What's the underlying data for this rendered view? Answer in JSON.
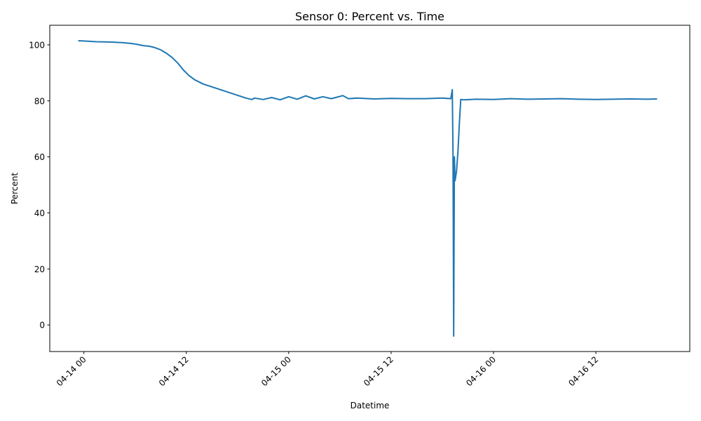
{
  "chart_data": {
    "type": "line",
    "title": "Sensor 0: Percent vs. Time",
    "xlabel": "Datetime",
    "ylabel": "Percent",
    "x_ticks": [
      "04-14 00",
      "04-14 12",
      "04-15 00",
      "04-15 12",
      "04-16 00",
      "04-16 12"
    ],
    "y_ticks": [
      "0",
      "20",
      "40",
      "60",
      "80",
      "100"
    ],
    "xlim": [
      "04-13 20:00",
      "04-16 23:00"
    ],
    "ylim": [
      -9.5,
      107
    ],
    "grid": false,
    "line_color": "#1f77b4",
    "series": [
      {
        "x": [
          "04-13 23:20",
          "04-14 00:30",
          "04-14 01:30",
          "04-14 03:00",
          "04-14 04:30",
          "04-14 05:30",
          "04-14 06:00",
          "04-14 06:30",
          "04-14 07:00",
          "04-14 07:40",
          "04-14 08:20",
          "04-14 09:00",
          "04-14 09:40",
          "04-14 10:20",
          "04-14 11:00",
          "04-14 11:40",
          "04-14 12:20",
          "04-14 13:00",
          "04-14 14:00",
          "04-14 15:00",
          "04-14 16:00",
          "04-14 17:00",
          "04-14 18:00",
          "04-14 19:00",
          "04-14 19:40",
          "04-14 20:00",
          "04-14 21:00",
          "04-14 22:00",
          "04-14 23:00",
          "04-15 00:00",
          "04-15 01:00",
          "04-15 02:00",
          "04-15 03:00",
          "04-15 04:00",
          "04-15 05:00",
          "04-15 06:00",
          "04-15 06:20",
          "04-15 07:00",
          "04-15 08:00",
          "04-15 10:00",
          "04-15 12:00",
          "04-15 14:00",
          "04-15 16:00",
          "04-15 18:00",
          "04-15 19:00",
          "04-15 19:10",
          "04-15 19:15",
          "04-15 19:20",
          "04-15 19:25",
          "04-15 19:30",
          "04-15 19:40",
          "04-15 19:50",
          "04-15 20:00",
          "04-15 20:10",
          "04-15 20:30",
          "04-15 22:00",
          "04-16 00:00",
          "04-16 02:00",
          "04-16 04:00",
          "04-16 06:00",
          "04-16 08:00",
          "04-16 10:00",
          "04-16 12:00",
          "04-16 14:00",
          "04-16 16:00",
          "04-16 18:00",
          "04-16 19:10"
        ],
        "y": [
          101.5,
          101.3,
          101.1,
          101.0,
          100.8,
          100.5,
          100.3,
          100.0,
          99.7,
          99.5,
          99.0,
          98.2,
          97.0,
          95.5,
          93.5,
          91.0,
          89.0,
          87.5,
          86.0,
          85.0,
          84.0,
          83.0,
          82.0,
          81.0,
          80.5,
          81.0,
          80.5,
          81.2,
          80.4,
          81.5,
          80.6,
          81.8,
          80.7,
          81.5,
          80.8,
          81.6,
          81.9,
          80.8,
          81.0,
          80.7,
          80.9,
          80.8,
          80.8,
          81.0,
          80.8,
          84.0,
          62.0,
          -4.0,
          60.0,
          51.5,
          55.0,
          62.0,
          72.0,
          80.5,
          80.4,
          80.6,
          80.5,
          80.8,
          80.6,
          80.7,
          80.8,
          80.6,
          80.5,
          80.6,
          80.7,
          80.6,
          80.7
        ]
      }
    ]
  }
}
